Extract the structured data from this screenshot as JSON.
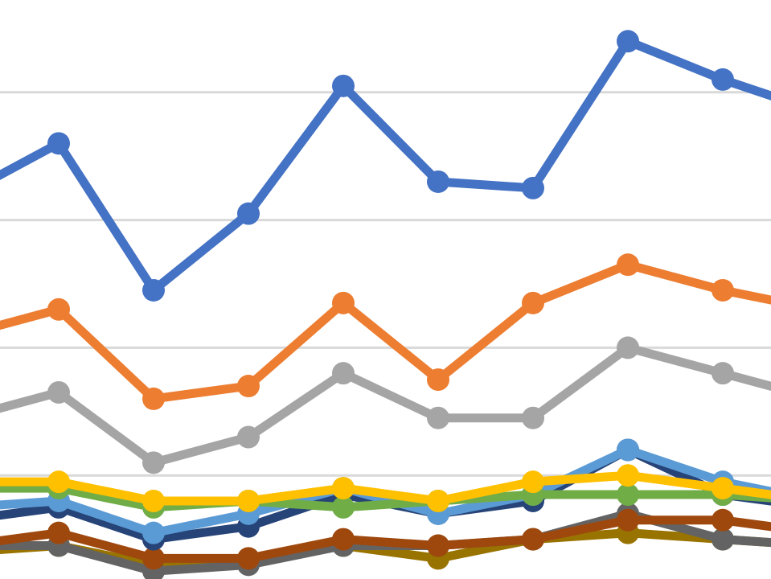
{
  "chart_data": {
    "type": "line",
    "title": "",
    "xlabel": "",
    "ylabel": "",
    "ylim": [
      0,
      1
    ],
    "grid": true,
    "grid_values": [
      0.2,
      0.4,
      0.6,
      0.8
    ],
    "x": [
      0,
      1,
      2,
      3,
      4,
      5,
      6,
      7,
      8,
      9
    ],
    "series": [
      {
        "color": "#4472c4",
        "values": [
          0.64,
          0.72,
          0.49,
          0.61,
          0.81,
          0.66,
          0.65,
          0.88,
          0.82,
          0.77
        ]
      },
      {
        "color": "#ed7d31",
        "values": [
          0.42,
          0.46,
          0.32,
          0.34,
          0.47,
          0.35,
          0.47,
          0.53,
          0.49,
          0.46
        ]
      },
      {
        "color": "#a5a5a5",
        "values": [
          0.29,
          0.33,
          0.22,
          0.26,
          0.36,
          0.29,
          0.29,
          0.4,
          0.36,
          0.32
        ]
      },
      {
        "color": "#ffc000",
        "values": [
          0.19,
          0.19,
          0.16,
          0.16,
          0.18,
          0.16,
          0.19,
          0.2,
          0.18,
          0.16
        ]
      },
      {
        "color": "#70ad47",
        "values": [
          0.18,
          0.18,
          0.15,
          0.16,
          0.15,
          0.16,
          0.17,
          0.17,
          0.17,
          0.16
        ]
      },
      {
        "color": "#5b9bd5",
        "values": [
          0.15,
          0.16,
          0.11,
          0.14,
          0.18,
          0.14,
          0.17,
          0.24,
          0.19,
          0.16
        ]
      },
      {
        "color": "#264478",
        "values": [
          0.13,
          0.15,
          0.1,
          0.12,
          0.17,
          0.14,
          0.16,
          0.24,
          0.17,
          0.15
        ]
      },
      {
        "color": "#9e480e",
        "values": [
          0.09,
          0.11,
          0.07,
          0.07,
          0.1,
          0.09,
          0.1,
          0.13,
          0.13,
          0.11
        ]
      },
      {
        "color": "#636363",
        "values": [
          0.09,
          0.09,
          0.05,
          0.06,
          0.09,
          0.09,
          0.1,
          0.14,
          0.1,
          0.09
        ]
      },
      {
        "color": "#997300",
        "values": [
          0.08,
          0.09,
          0.06,
          0.07,
          0.09,
          0.07,
          0.1,
          0.11,
          0.1,
          0.09
        ]
      }
    ]
  }
}
